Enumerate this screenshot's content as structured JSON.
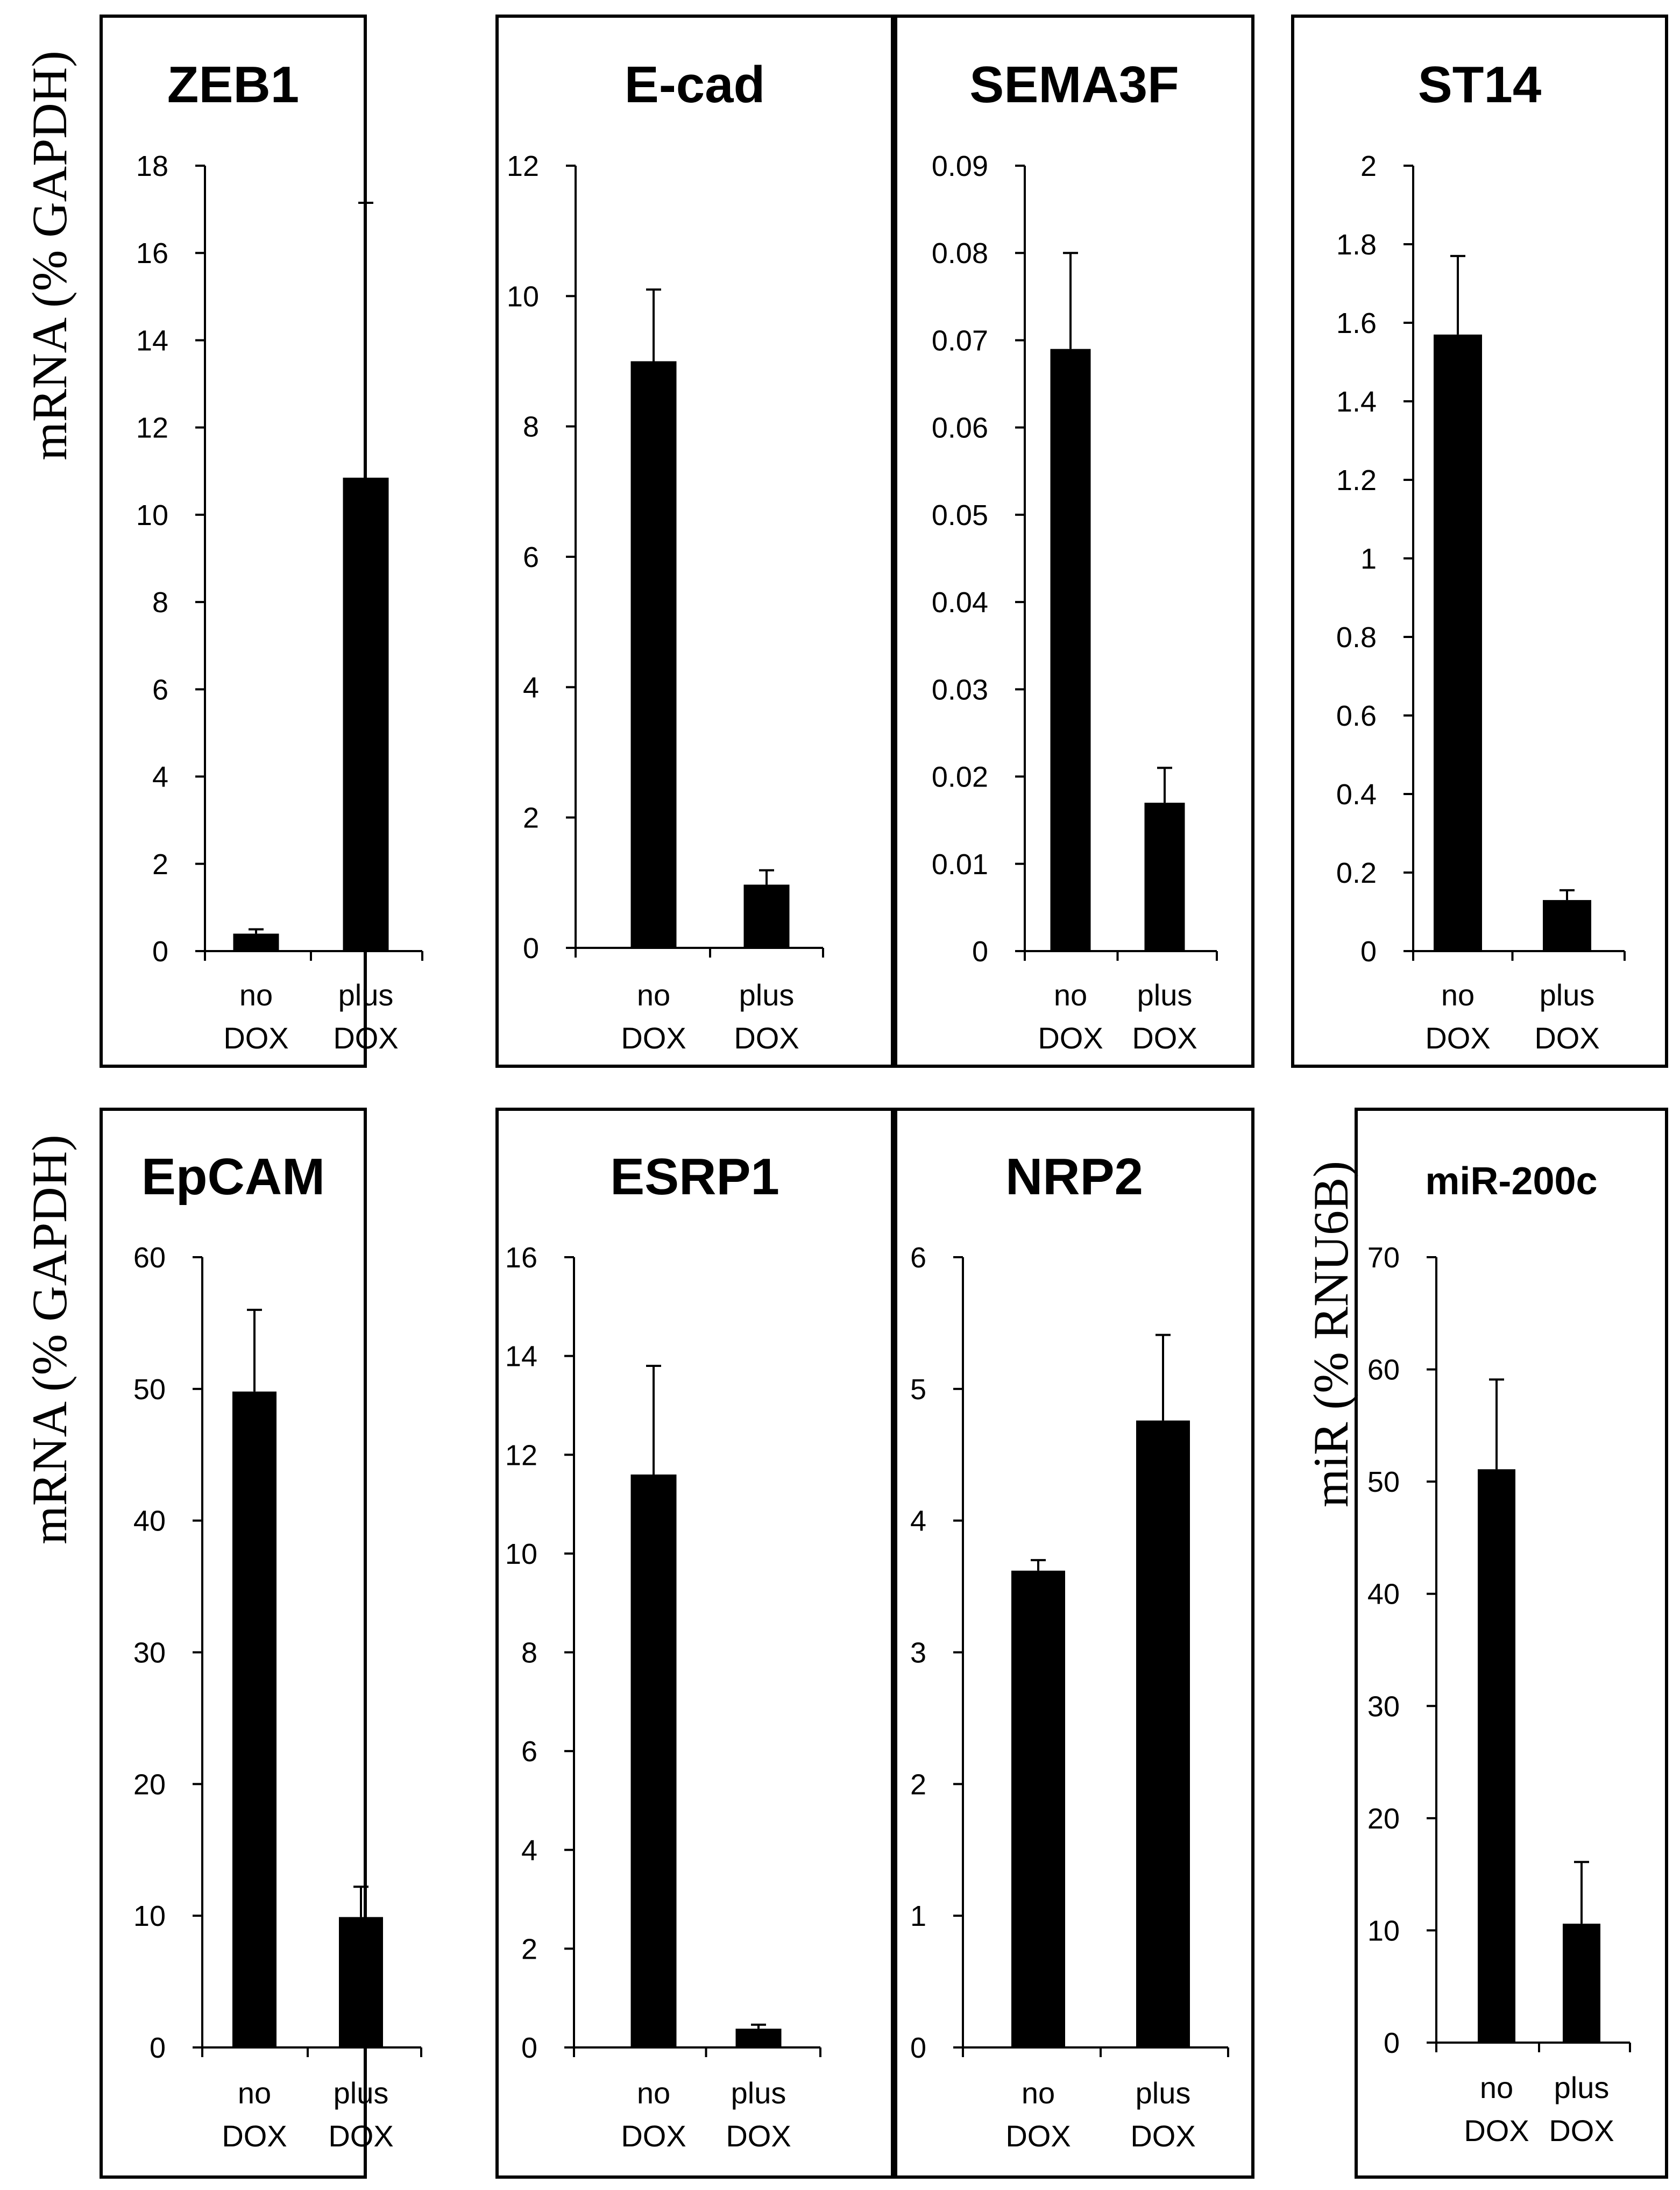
{
  "colors": {
    "bar": "#000000",
    "background": "#ffffff"
  },
  "row_labels": {
    "top": "mRNA (% GAPDH)",
    "bottom_left": "mRNA (% GAPDH)",
    "bottom_right": "miR (% RNU6B)"
  },
  "chart_data": [
    {
      "type": "bar",
      "title": "ZEB1",
      "ylabel": "mRNA (% GAPDH)",
      "categories": [
        [
          "no",
          "DOX"
        ],
        [
          "plus",
          "DOX"
        ]
      ],
      "values": [
        0.4,
        10.85
      ],
      "errors": [
        0.1,
        6.3
      ],
      "ylim": [
        0,
        18
      ],
      "ticks": [
        0,
        2,
        4,
        6,
        8,
        10,
        12,
        14,
        16,
        18
      ],
      "tick_labels": [
        "0",
        "2",
        "4",
        "6",
        "8",
        "10",
        "12",
        "14",
        "16",
        "18"
      ]
    },
    {
      "type": "bar",
      "title": "E-cad",
      "ylabel": "mRNA (% GAPDH)",
      "categories": [
        [
          "no",
          "DOX"
        ],
        [
          "plus",
          "DOX"
        ]
      ],
      "values": [
        9.0,
        0.97
      ],
      "errors": [
        1.1,
        0.22
      ],
      "ylim": [
        0,
        12
      ],
      "ticks": [
        0,
        2,
        4,
        6,
        8,
        10,
        12
      ],
      "tick_labels": [
        "0",
        "2",
        "4",
        "6",
        "8",
        "10",
        "12"
      ]
    },
    {
      "type": "bar",
      "title": "SEMA3F",
      "ylabel": "mRNA (% GAPDH)",
      "categories": [
        [
          "no",
          "DOX"
        ],
        [
          "plus",
          "DOX"
        ]
      ],
      "values": [
        0.069,
        0.017
      ],
      "errors": [
        0.011,
        0.004
      ],
      "ylim": [
        0,
        0.09
      ],
      "ticks": [
        0,
        0.01,
        0.02,
        0.03,
        0.04,
        0.05,
        0.06,
        0.07,
        0.08,
        0.09
      ],
      "tick_labels": [
        "0",
        "0.01",
        "0.02",
        "0.03",
        "0.04",
        "0.05",
        "0.06",
        "0.07",
        "0.08",
        "0.09"
      ]
    },
    {
      "type": "bar",
      "title": "ST14",
      "ylabel": "mRNA (% GAPDH)",
      "categories": [
        [
          "no",
          "DOX"
        ],
        [
          "plus",
          "DOX"
        ]
      ],
      "values": [
        1.57,
        0.13
      ],
      "errors": [
        0.2,
        0.025
      ],
      "ylim": [
        0,
        2
      ],
      "ticks": [
        0,
        0.2,
        0.4,
        0.6,
        0.8,
        1,
        1.2,
        1.4,
        1.6,
        1.8,
        2
      ],
      "tick_labels": [
        "0",
        "0.2",
        "0.4",
        "0.6",
        "0.8",
        "1",
        "1.2",
        "1.4",
        "1.6",
        "1.8",
        "2"
      ]
    },
    {
      "type": "bar",
      "title": "EpCAM",
      "ylabel": "mRNA (% GAPDH)",
      "categories": [
        [
          "no",
          "DOX"
        ],
        [
          "plus",
          "DOX"
        ]
      ],
      "values": [
        49.8,
        9.9
      ],
      "errors": [
        6.2,
        2.3
      ],
      "ylim": [
        0,
        60
      ],
      "ticks": [
        0,
        10,
        20,
        30,
        40,
        50,
        60
      ],
      "tick_labels": [
        "0",
        "10",
        "20",
        "30",
        "40",
        "50",
        "60"
      ]
    },
    {
      "type": "bar",
      "title": "ESRP1",
      "ylabel": "mRNA (% GAPDH)",
      "categories": [
        [
          "no",
          "DOX"
        ],
        [
          "plus",
          "DOX"
        ]
      ],
      "values": [
        11.6,
        0.38
      ],
      "errors": [
        2.2,
        0.08
      ],
      "ylim": [
        0,
        16
      ],
      "ticks": [
        0,
        2,
        4,
        6,
        8,
        10,
        12,
        14,
        16
      ],
      "tick_labels": [
        "0",
        "2",
        "4",
        "6",
        "8",
        "10",
        "12",
        "14",
        "16"
      ]
    },
    {
      "type": "bar",
      "title": "NRP2",
      "ylabel": "mRNA (% GAPDH)",
      "categories": [
        [
          "no",
          "DOX"
        ],
        [
          "plus",
          "DOX"
        ]
      ],
      "values": [
        3.62,
        4.76
      ],
      "errors": [
        0.08,
        0.65
      ],
      "ylim": [
        0,
        6
      ],
      "ticks": [
        0,
        1,
        2,
        3,
        4,
        5,
        6
      ],
      "tick_labels": [
        "0",
        "1",
        "2",
        "3",
        "4",
        "5",
        "6"
      ]
    },
    {
      "type": "bar",
      "title": "miR-200c",
      "ylabel": "miR (% RNU6B)",
      "categories": [
        [
          "no",
          "DOX"
        ],
        [
          "plus",
          "DOX"
        ]
      ],
      "values": [
        51.1,
        10.6
      ],
      "errors": [
        8.0,
        5.5
      ],
      "ylim": [
        0,
        70
      ],
      "ticks": [
        0,
        10,
        20,
        30,
        40,
        50,
        60,
        70
      ],
      "tick_labels": [
        "0",
        "10",
        "20",
        "30",
        "40",
        "50",
        "60",
        "70"
      ]
    }
  ]
}
